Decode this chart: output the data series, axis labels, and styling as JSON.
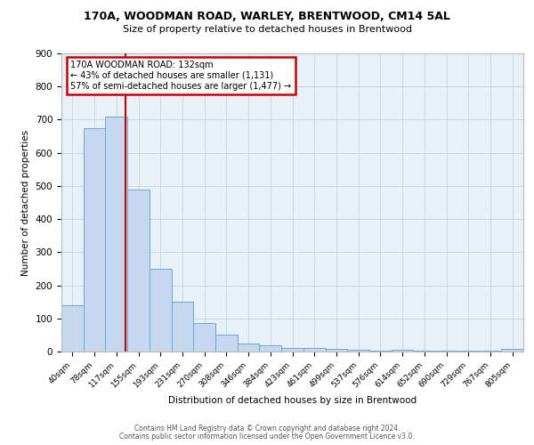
{
  "title1": "170A, WOODMAN ROAD, WARLEY, BRENTWOOD, CM14 5AL",
  "title2": "Size of property relative to detached houses in Brentwood",
  "xlabel": "Distribution of detached houses by size in Brentwood",
  "ylabel": "Number of detached properties",
  "bar_labels": [
    "40sqm",
    "78sqm",
    "117sqm",
    "155sqm",
    "193sqm",
    "231sqm",
    "270sqm",
    "308sqm",
    "346sqm",
    "384sqm",
    "423sqm",
    "461sqm",
    "499sqm",
    "537sqm",
    "576sqm",
    "614sqm",
    "652sqm",
    "690sqm",
    "729sqm",
    "767sqm",
    "805sqm"
  ],
  "bar_heights": [
    140,
    675,
    710,
    490,
    250,
    150,
    85,
    50,
    25,
    20,
    12,
    10,
    8,
    5,
    4,
    5,
    3,
    3,
    2,
    2,
    8
  ],
  "bar_color": "#c5d8ef",
  "bar_edge_color": "#6aaad4",
  "grid_color": "#c8d8e8",
  "background_color": "#e8f0f8",
  "red_line_x": 2.4,
  "red_line_color": "#cc0000",
  "annotation_text": "170A WOODMAN ROAD: 132sqm\n← 43% of detached houses are smaller (1,131)\n57% of semi-detached houses are larger (1,477) →",
  "annotation_box_color": "#cc0000",
  "ylim": [
    0,
    900
  ],
  "yticks": [
    0,
    100,
    200,
    300,
    400,
    500,
    600,
    700,
    800,
    900
  ],
  "footer1": "Contains HM Land Registry data © Crown copyright and database right 2024.",
  "footer2": "Contains public sector information licensed under the Open Government Licence v3.0."
}
